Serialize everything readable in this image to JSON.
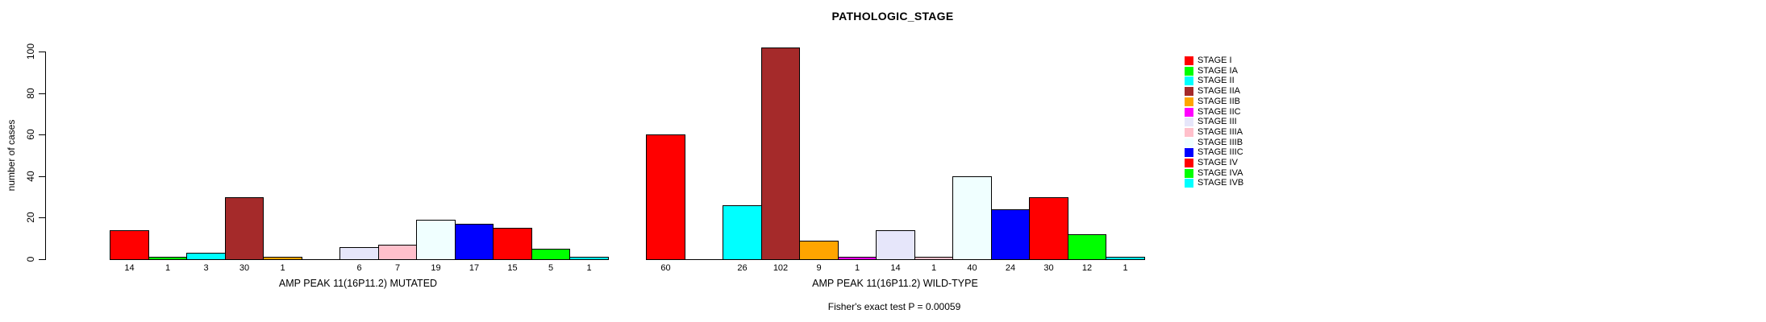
{
  "chart_data": {
    "type": "bar",
    "title": "PATHOLOGIC_STAGE",
    "ylabel": "number of cases",
    "ylim": [
      0,
      100
    ],
    "yticks": [
      0,
      20,
      40,
      60,
      80,
      100
    ],
    "grid": false,
    "legend_position": "right",
    "categories": [
      "STAGE I",
      "STAGE IA",
      "STAGE II",
      "STAGE IIA",
      "STAGE IIB",
      "STAGE IIC",
      "STAGE III",
      "STAGE IIIA",
      "STAGE IIIB",
      "STAGE IIIC",
      "STAGE IV",
      "STAGE IVA",
      "STAGE IVB"
    ],
    "colors": [
      "#FF0000",
      "#00FF00",
      "#00FFFF",
      "#A52A2A",
      "#FFA500",
      "#FF00FF",
      "#E6E6FA",
      "#FFC0CB",
      "#F0FFFF",
      "#0000FF",
      "#FF0000",
      "#00FF00",
      "#00FFFF"
    ],
    "panels": [
      {
        "xlabel": "AMP PEAK 11(16P11.2) MUTATED",
        "values": [
          14,
          1,
          3,
          30,
          1,
          0,
          6,
          7,
          19,
          17,
          15,
          5,
          1
        ]
      },
      {
        "xlabel": "AMP PEAK 11(16P11.2) WILD-TYPE",
        "values": [
          60,
          0,
          26,
          102,
          9,
          1,
          14,
          1,
          40,
          24,
          30,
          12,
          1
        ]
      }
    ],
    "annotation": "Fisher's exact test P = 0.00059"
  }
}
